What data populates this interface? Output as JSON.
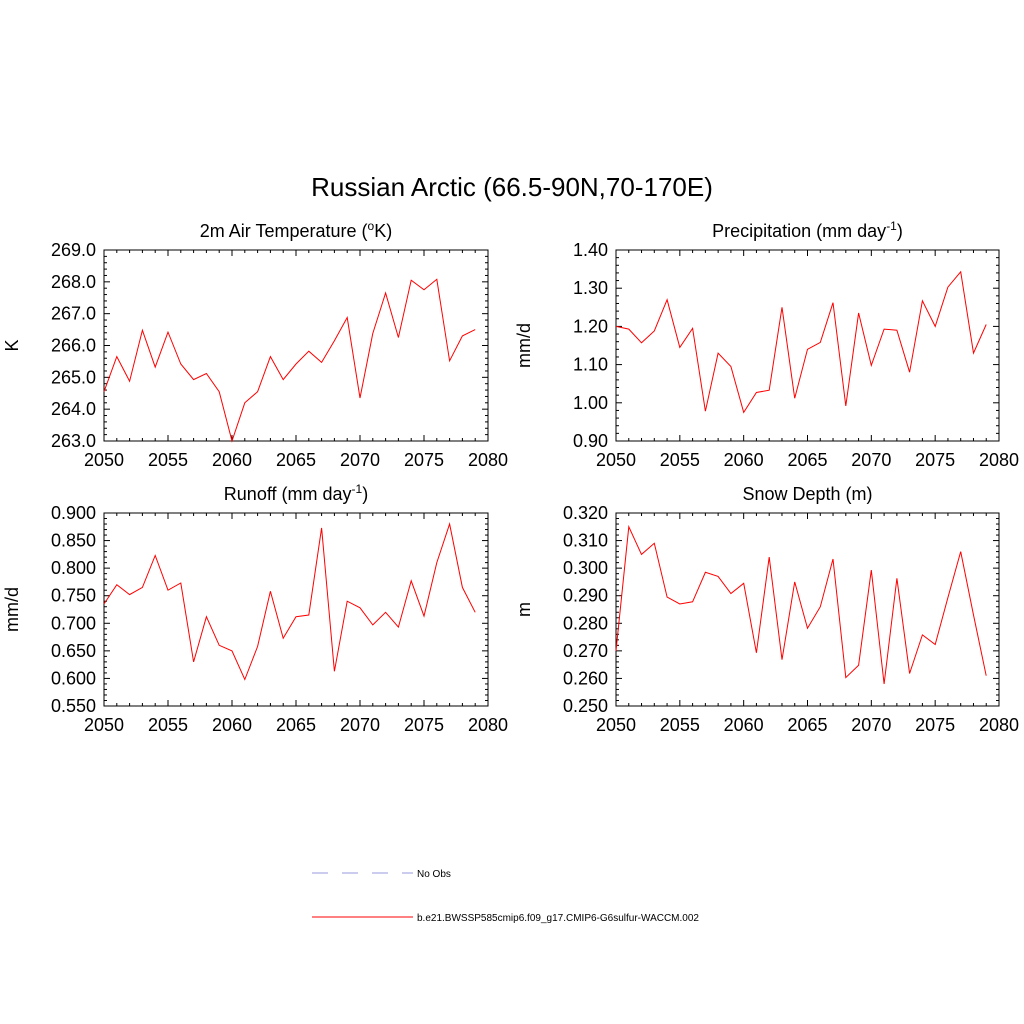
{
  "figure": {
    "title": "Russian Arctic (66.5-90N,70-170E)"
  },
  "legend": [
    {
      "label": "No Obs",
      "color": "#9999dd",
      "style": "dashed"
    },
    {
      "label": "b.e21.BWSSP585cmip6.f09_g17.CMIP6-G6sulfur-WACCM.002",
      "color": "#ff0000",
      "style": "solid"
    }
  ],
  "chart_data": [
    {
      "type": "line",
      "title": "2m Air Temperature (",
      "title_sup": "o",
      "title_tail": "K)",
      "ylabel": "K",
      "xlim": [
        2050,
        2080
      ],
      "ylim": [
        263.0,
        269.0
      ],
      "xticks": [
        2050,
        2055,
        2060,
        2065,
        2070,
        2075,
        2080
      ],
      "yticks": [
        "263.0",
        "264.0",
        "265.0",
        "266.0",
        "267.0",
        "268.0",
        "269.0"
      ],
      "x": [
        2050,
        2051,
        2052,
        2053,
        2054,
        2055,
        2056,
        2057,
        2058,
        2059,
        2060,
        2061,
        2062,
        2063,
        2064,
        2065,
        2066,
        2067,
        2068,
        2069,
        2070,
        2071,
        2072,
        2073,
        2074,
        2075,
        2076,
        2077,
        2078,
        2079
      ],
      "values": [
        264.55,
        265.65,
        264.88,
        266.48,
        265.32,
        266.42,
        265.42,
        264.93,
        265.12,
        264.55,
        263.0,
        264.2,
        264.55,
        265.65,
        264.93,
        265.42,
        265.82,
        265.47,
        266.15,
        266.88,
        264.35,
        266.38,
        267.65,
        266.25,
        268.05,
        267.75,
        268.08,
        265.52,
        266.3,
        266.5
      ],
      "series_color": "#ff0000"
    },
    {
      "type": "line",
      "title": "Precipitation (mm day",
      "title_sup": "-1",
      "title_tail": ")",
      "ylabel": "mm/d",
      "xlim": [
        2050,
        2080
      ],
      "ylim": [
        0.9,
        1.4
      ],
      "xticks": [
        2050,
        2055,
        2060,
        2065,
        2070,
        2075,
        2080
      ],
      "yticks": [
        "0.90",
        "1.00",
        "1.10",
        "1.20",
        "1.30",
        "1.40"
      ],
      "x": [
        2050,
        2051,
        2052,
        2053,
        2054,
        2055,
        2056,
        2057,
        2058,
        2059,
        2060,
        2061,
        2062,
        2063,
        2064,
        2065,
        2066,
        2067,
        2068,
        2069,
        2070,
        2071,
        2072,
        2073,
        2074,
        2075,
        2076,
        2077,
        2078,
        2079
      ],
      "values": [
        1.2,
        1.193,
        1.157,
        1.188,
        1.27,
        1.145,
        1.195,
        0.978,
        1.13,
        1.095,
        0.975,
        1.027,
        1.033,
        1.25,
        1.012,
        1.14,
        1.158,
        1.262,
        0.992,
        1.235,
        1.098,
        1.193,
        1.19,
        1.08,
        1.267,
        1.2,
        1.303,
        1.343,
        1.13,
        1.205
      ],
      "series_color": "#ff0000"
    },
    {
      "type": "line",
      "title": "Runoff (mm day",
      "title_sup": "-1",
      "title_tail": ")",
      "ylabel": "mm/d",
      "xlim": [
        2050,
        2080
      ],
      "ylim": [
        0.55,
        0.9
      ],
      "xticks": [
        2050,
        2055,
        2060,
        2065,
        2070,
        2075,
        2080
      ],
      "yticks": [
        "0.550",
        "0.600",
        "0.650",
        "0.700",
        "0.750",
        "0.800",
        "0.850",
        "0.900"
      ],
      "x": [
        2050,
        2051,
        2052,
        2053,
        2054,
        2055,
        2056,
        2057,
        2058,
        2059,
        2060,
        2061,
        2062,
        2063,
        2064,
        2065,
        2066,
        2067,
        2068,
        2069,
        2070,
        2071,
        2072,
        2073,
        2074,
        2075,
        2076,
        2077,
        2078,
        2079
      ],
      "values": [
        0.735,
        0.77,
        0.752,
        0.765,
        0.823,
        0.76,
        0.773,
        0.63,
        0.712,
        0.66,
        0.65,
        0.598,
        0.658,
        0.758,
        0.673,
        0.712,
        0.715,
        0.873,
        0.613,
        0.74,
        0.728,
        0.697,
        0.72,
        0.693,
        0.777,
        0.713,
        0.81,
        0.88,
        0.765,
        0.72
      ],
      "series_color": "#ff0000"
    },
    {
      "type": "line",
      "title": "Snow Depth (m)",
      "title_sup": "",
      "title_tail": "",
      "ylabel": "m",
      "xlim": [
        2050,
        2080
      ],
      "ylim": [
        0.25,
        0.32
      ],
      "xticks": [
        2050,
        2055,
        2060,
        2065,
        2070,
        2075,
        2080
      ],
      "yticks": [
        "0.250",
        "0.260",
        "0.270",
        "0.280",
        "0.290",
        "0.300",
        "0.310",
        "0.320"
      ],
      "x": [
        2050,
        2051,
        2052,
        2053,
        2054,
        2055,
        2056,
        2057,
        2058,
        2059,
        2060,
        2061,
        2062,
        2063,
        2064,
        2065,
        2066,
        2067,
        2068,
        2069,
        2070,
        2071,
        2072,
        2073,
        2074,
        2075,
        2076,
        2077,
        2078,
        2079
      ],
      "values": [
        0.27,
        0.315,
        0.305,
        0.309,
        0.2895,
        0.287,
        0.2878,
        0.2985,
        0.297,
        0.2908,
        0.2945,
        0.2693,
        0.304,
        0.2668,
        0.295,
        0.2782,
        0.286,
        0.3033,
        0.2603,
        0.2648,
        0.2993,
        0.258,
        0.2963,
        0.2618,
        0.2758,
        0.2723,
        0.2893,
        0.306,
        0.283,
        0.261
      ],
      "series_color": "#ff0000"
    }
  ]
}
